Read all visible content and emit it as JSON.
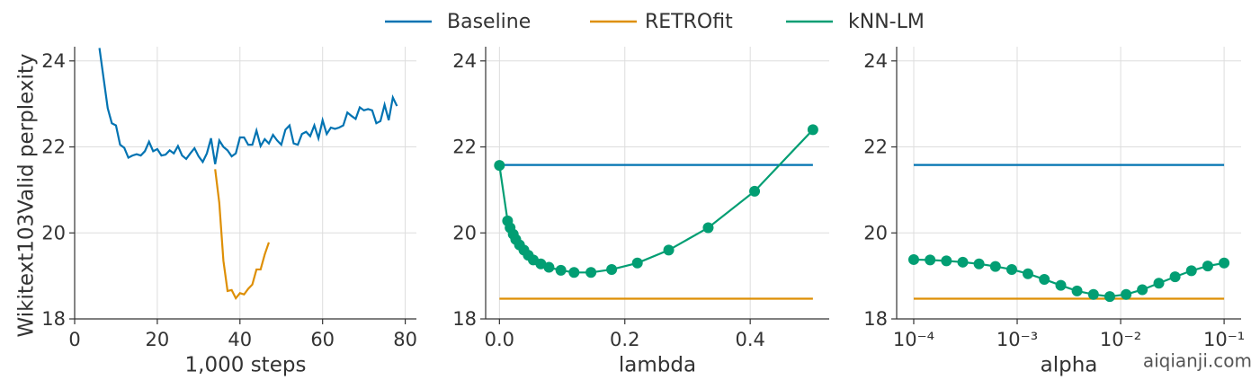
{
  "watermark": "aiqianji.com",
  "chart_data": [
    {
      "type": "line",
      "xlabel": "1,000 steps",
      "ylabel": "Wikitext103Valid perplexity",
      "xlim": [
        0,
        82.7
      ],
      "ylim": [
        18,
        24.33
      ],
      "xticks": [
        0,
        20,
        40,
        60,
        80
      ],
      "yticks": [
        18,
        20,
        22,
        24
      ],
      "grid": true,
      "series": [
        {
          "name": "Baseline",
          "color": "#0173b2",
          "x": [
            6,
            7,
            8,
            9,
            10,
            11,
            12,
            13,
            14,
            15,
            16,
            17,
            18,
            19,
            20,
            21,
            22,
            23,
            24,
            25,
            26,
            27,
            28,
            29,
            30,
            31,
            32,
            33,
            34,
            35,
            36,
            37,
            38,
            39,
            40,
            41,
            42,
            43,
            44,
            45,
            46,
            47,
            48,
            49,
            50,
            51,
            52,
            53,
            54,
            55,
            56,
            57,
            58,
            59,
            60,
            61,
            62,
            63,
            64,
            65,
            66,
            67,
            68,
            69,
            70,
            71,
            72,
            73,
            74,
            75,
            76,
            77,
            78
          ],
          "values": [
            24.3,
            23.6,
            22.9,
            22.55,
            22.5,
            22.05,
            21.98,
            21.75,
            21.8,
            21.83,
            21.8,
            21.9,
            22.12,
            21.9,
            21.95,
            21.8,
            21.82,
            21.92,
            21.85,
            22.02,
            21.8,
            21.72,
            21.85,
            21.97,
            21.78,
            21.65,
            21.85,
            22.2,
            21.6,
            22.15,
            22.0,
            21.92,
            21.78,
            21.85,
            22.22,
            22.22,
            22.05,
            22.05,
            22.38,
            22.02,
            22.18,
            22.08,
            22.28,
            22.15,
            22.05,
            22.4,
            22.5,
            22.08,
            22.05,
            22.3,
            22.35,
            22.25,
            22.5,
            22.2,
            22.62,
            22.3,
            22.45,
            22.42,
            22.45,
            22.5,
            22.8,
            22.72,
            22.65,
            22.92,
            22.85,
            22.88,
            22.85,
            22.55,
            22.6,
            22.98,
            22.62,
            23.15,
            22.95
          ]
        },
        {
          "name": "RETROfit",
          "color": "#de8f05",
          "x": [
            34,
            35,
            36,
            37,
            38,
            39,
            40,
            41,
            42,
            43,
            44,
            45,
            46,
            47
          ],
          "values": [
            21.48,
            20.7,
            19.35,
            18.65,
            18.67,
            18.48,
            18.6,
            18.57,
            18.7,
            18.8,
            19.15,
            19.15,
            19.5,
            19.78
          ]
        }
      ]
    },
    {
      "type": "line",
      "xlabel": "lambda",
      "xlim": [
        -0.022,
        0.526
      ],
      "ylim": [
        18,
        24.33
      ],
      "xticks": [
        {
          "value": 0,
          "label": "0.0"
        },
        0.2,
        0.4
      ],
      "yticks": [
        18,
        20,
        22,
        24
      ],
      "grid": true,
      "series": [
        {
          "color": "#0173b2",
          "x": [
            0,
            0.5
          ],
          "values": [
            21.58,
            21.58
          ]
        },
        {
          "color": "#de8f05",
          "x": [
            0,
            0.5
          ],
          "values": [
            18.47,
            18.47
          ]
        },
        {
          "name": "kNN-LM",
          "color": "#029e73",
          "markers": true,
          "x": [
            0,
            0.013,
            0.017,
            0.022,
            0.026,
            0.032,
            0.039,
            0.046,
            0.054,
            0.066,
            0.079,
            0.098,
            0.119,
            0.146,
            0.179,
            0.22,
            0.27,
            0.333,
            0.407,
            0.5
          ],
          "values": [
            21.57,
            20.28,
            20.12,
            19.97,
            19.85,
            19.72,
            19.6,
            19.48,
            19.37,
            19.28,
            19.2,
            19.13,
            19.08,
            19.08,
            19.15,
            19.3,
            19.6,
            20.12,
            20.97,
            22.4
          ]
        }
      ]
    },
    {
      "type": "line",
      "xlabel": "alpha",
      "xscale": "log",
      "xlim": [
        6.84e-05,
        0.146
      ],
      "ylim": [
        18,
        24.33
      ],
      "xticks": [
        {
          "value": 0.0001,
          "label": "10⁻⁴"
        },
        {
          "value": 0.001,
          "label": "10⁻³"
        },
        {
          "value": 0.01,
          "label": "10⁻²"
        },
        {
          "value": 0.1,
          "label": "10⁻¹"
        }
      ],
      "yticks": [
        18,
        20,
        22,
        24
      ],
      "grid": true,
      "series": [
        {
          "color": "#0173b2",
          "x": [
            0.0001,
            0.1
          ],
          "values": [
            21.58,
            21.58
          ]
        },
        {
          "color": "#de8f05",
          "x": [
            0.0001,
            0.1
          ],
          "values": [
            18.47,
            18.47
          ]
        },
        {
          "color": "#029e73",
          "markers": true,
          "x": [
            0.0001,
            0.000144,
            0.000207,
            0.000298,
            0.000428,
            0.000616,
            0.000886,
            0.00127,
            0.00183,
            0.00264,
            0.00379,
            0.00546,
            0.00785,
            0.0113,
            0.0162,
            0.0234,
            0.0336,
            0.0483,
            0.0695,
            0.1
          ],
          "values": [
            19.38,
            19.37,
            19.35,
            19.32,
            19.28,
            19.22,
            19.15,
            19.05,
            18.92,
            18.78,
            18.65,
            18.57,
            18.52,
            18.57,
            18.68,
            18.83,
            18.98,
            19.12,
            19.23,
            19.3
          ]
        }
      ]
    }
  ]
}
